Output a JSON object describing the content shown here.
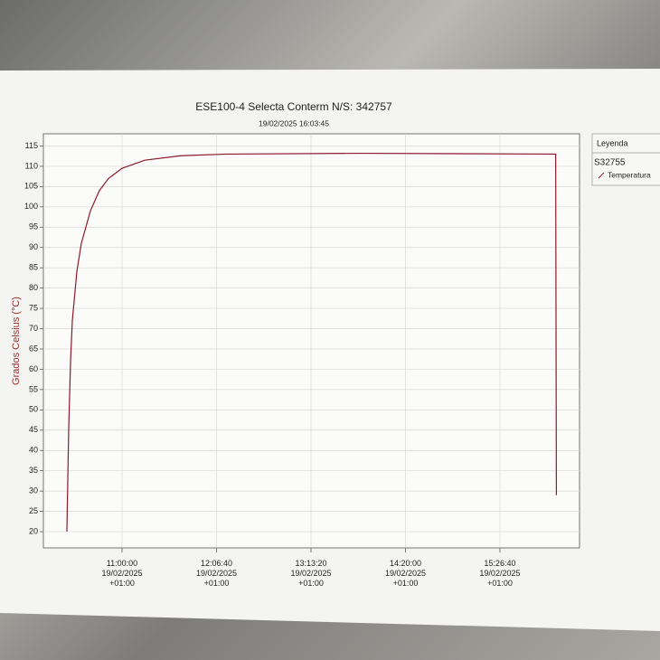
{
  "chart_data": {
    "type": "line",
    "title": "ESE100-4 Selecta Conterm N/S: 342757",
    "subtitle": "19/02/2025 16:03:45",
    "y_label": "Grados Celsius (°C)",
    "legend_title": "Leyenda",
    "legend_group": "S32755",
    "x": [
      "2025-02-19T10:21:04+01:00",
      "2025-02-19T10:22:20+01:00",
      "2025-02-19T10:23:40+01:00",
      "2025-02-19T10:24:55+01:00",
      "2025-02-19T10:28:05+01:00",
      "2025-02-19T10:31:15+01:00",
      "2025-02-19T10:37:40+01:00",
      "2025-02-19T10:44:00+01:00",
      "2025-02-19T10:50:25+01:00",
      "2025-02-19T11:00:00+01:00",
      "2025-02-19T11:16:00+01:00",
      "2025-02-19T11:41:30+01:00",
      "2025-02-19T12:13:25+01:00",
      "2025-02-19T13:49:00+01:00",
      "2025-02-19T16:06:00+01:00",
      "2025-02-19T16:06:30+01:00"
    ],
    "series": [
      {
        "name": "Temperatura",
        "color": "#8b1a2b",
        "values": [
          20,
          45,
          62,
          72,
          84,
          91,
          99,
          104,
          107,
          109.5,
          111.5,
          112.6,
          113,
          113.2,
          113,
          29
        ]
      }
    ],
    "xlim": [
      "2025-02-19T10:04:30+01:00",
      "2025-02-19T16:22:50+01:00"
    ],
    "xticks": [
      {
        "value": "2025-02-19T11:00:00+01:00",
        "label": "11:00:00\n19/02/2025\n+01:00"
      },
      {
        "value": "2025-02-19T12:06:40+01:00",
        "label": "12:06:40\n19/02/2025\n+01:00"
      },
      {
        "value": "2025-02-19T13:13:20+01:00",
        "label": "13:13:20\n19/02/2025\n+01:00"
      },
      {
        "value": "2025-02-19T14:20:00+01:00",
        "label": "14:20:00\n19/02/2025\n+01:00"
      },
      {
        "value": "2025-02-19T15:26:40+01:00",
        "label": "15:26:40\n19/02/2025\n+01:00"
      }
    ],
    "ylim": [
      16,
      118
    ],
    "yticks": [
      20,
      25,
      30,
      35,
      40,
      45,
      50,
      55,
      60,
      65,
      70,
      75,
      80,
      85,
      90,
      95,
      100,
      105,
      110,
      115
    ],
    "grid": true
  }
}
